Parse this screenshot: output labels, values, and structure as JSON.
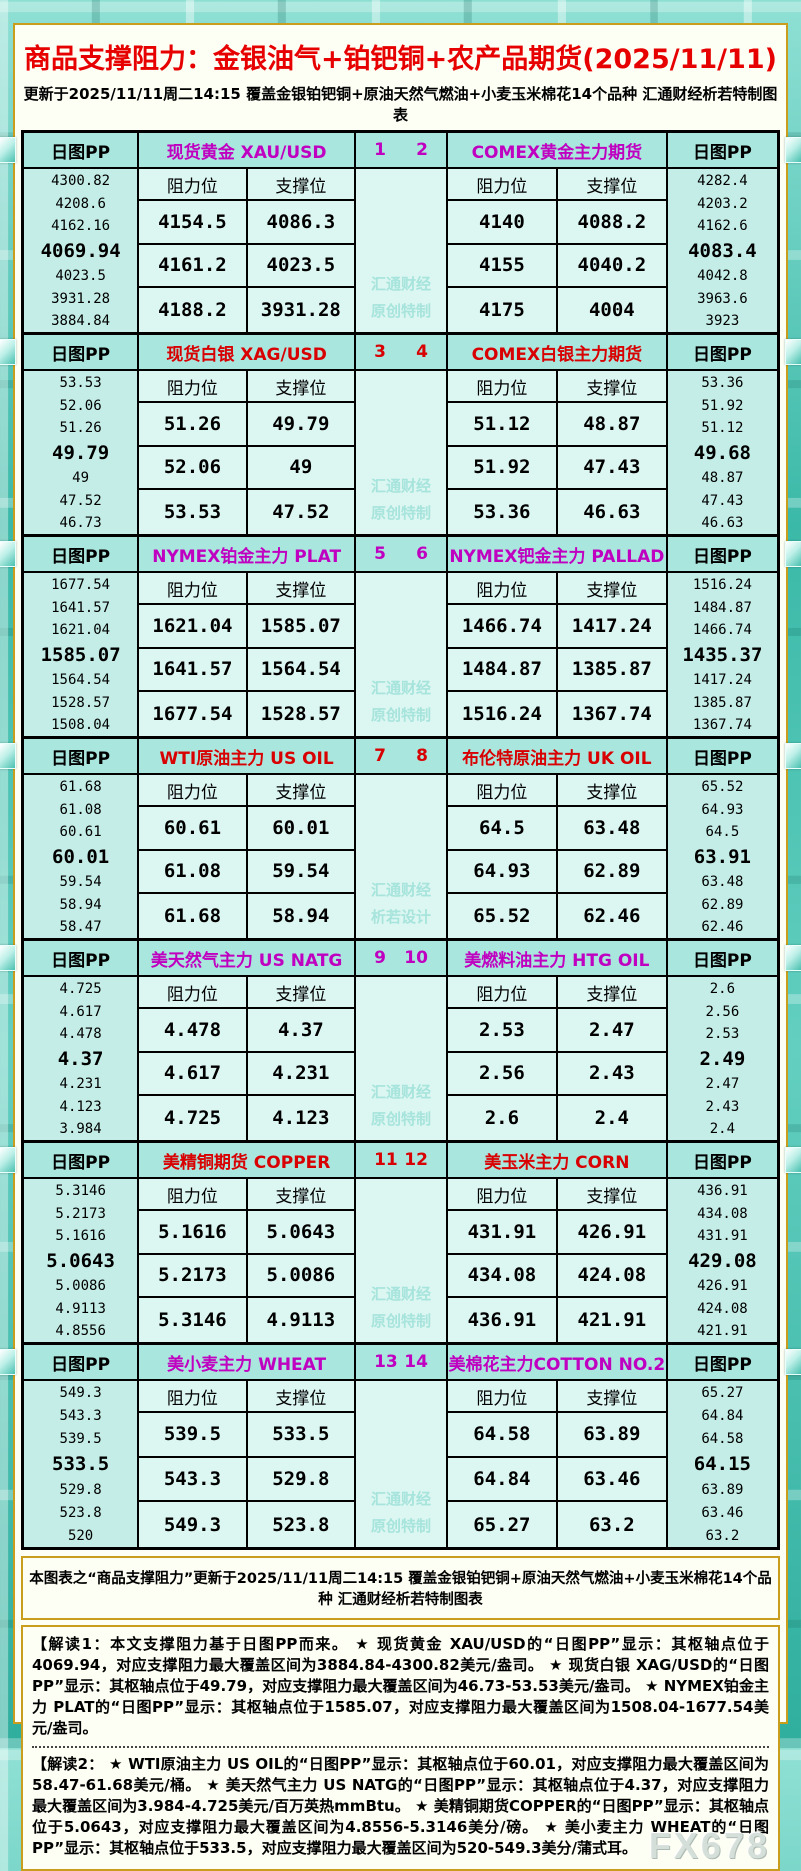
{
  "title": "商品支撑阻力：金银油气+铂钯铜+农产品期货(2025/11/11)",
  "subtitle": "更新于2025/11/11周二14:15 覆盖金银铂钯铜+原油天然气燃油+小麦玉米棉花14个品种 汇通财经析若特制图表",
  "labels": {
    "daily_pp": "日图PP",
    "resistance": "阻力位",
    "support": "支撑位"
  },
  "colors": {
    "magenta_accent": "#c000c0",
    "red_accent": "#d80000",
    "title_red": "#e60000",
    "gold_border": "#c99e1c",
    "header_teal": "#a9e6de",
    "pp_column_teal": "#c3ede6",
    "cell_light": "#dcf6f2",
    "watermark_teal": "#a6e4dc"
  },
  "chart_data": {
    "type": "table",
    "panels": [
      {
        "accent": "#c000c0",
        "num_left": "1",
        "num_right": "2",
        "watermark": [
          "汇通财经",
          "原创特制"
        ],
        "left": {
          "title": "现货黄金 XAU/USD",
          "pp": [
            "4300.82",
            "4208.6",
            "4162.16",
            "4069.94",
            "4023.5",
            "3931.28",
            "3884.84"
          ],
          "rows": [
            [
              "4154.5",
              "4086.3"
            ],
            [
              "4161.2",
              "4023.5"
            ],
            [
              "4188.2",
              "3931.28"
            ]
          ]
        },
        "right": {
          "title": "COMEX黄金主力期货",
          "pp": [
            "4282.4",
            "4203.2",
            "4162.6",
            "4083.4",
            "4042.8",
            "3963.6",
            "3923"
          ],
          "rows": [
            [
              "4140",
              "4088.2"
            ],
            [
              "4155",
              "4040.2"
            ],
            [
              "4175",
              "4004"
            ]
          ]
        }
      },
      {
        "accent": "#d80000",
        "num_left": "3",
        "num_right": "4",
        "watermark": [
          "汇通财经",
          "原创特制"
        ],
        "left": {
          "title": "现货白银 XAG/USD",
          "pp": [
            "53.53",
            "52.06",
            "51.26",
            "49.79",
            "49",
            "47.52",
            "46.73"
          ],
          "rows": [
            [
              "51.26",
              "49.79"
            ],
            [
              "52.06",
              "49"
            ],
            [
              "53.53",
              "47.52"
            ]
          ]
        },
        "right": {
          "title": "COMEX白银主力期货",
          "pp": [
            "53.36",
            "51.92",
            "51.12",
            "49.68",
            "48.87",
            "47.43",
            "46.63"
          ],
          "rows": [
            [
              "51.12",
              "48.87"
            ],
            [
              "51.92",
              "47.43"
            ],
            [
              "53.36",
              "46.63"
            ]
          ]
        }
      },
      {
        "accent": "#c000c0",
        "num_left": "5",
        "num_right": "6",
        "watermark": [
          "汇通财经",
          "原创特制"
        ],
        "left": {
          "title": "NYMEX铂金主力 PLAT",
          "pp": [
            "1677.54",
            "1641.57",
            "1621.04",
            "1585.07",
            "1564.54",
            "1528.57",
            "1508.04"
          ],
          "rows": [
            [
              "1621.04",
              "1585.07"
            ],
            [
              "1641.57",
              "1564.54"
            ],
            [
              "1677.54",
              "1528.57"
            ]
          ]
        },
        "right": {
          "title": "NYMEX钯金主力 PALLAD",
          "pp": [
            "1516.24",
            "1484.87",
            "1466.74",
            "1435.37",
            "1417.24",
            "1385.87",
            "1367.74"
          ],
          "rows": [
            [
              "1466.74",
              "1417.24"
            ],
            [
              "1484.87",
              "1385.87"
            ],
            [
              "1516.24",
              "1367.74"
            ]
          ]
        }
      },
      {
        "accent": "#d80000",
        "num_left": "7",
        "num_right": "8",
        "watermark": [
          "汇通财经",
          "析若设计"
        ],
        "left": {
          "title": "WTI原油主力 US OIL",
          "pp": [
            "61.68",
            "61.08",
            "60.61",
            "60.01",
            "59.54",
            "58.94",
            "58.47"
          ],
          "rows": [
            [
              "60.61",
              "60.01"
            ],
            [
              "61.08",
              "59.54"
            ],
            [
              "61.68",
              "58.94"
            ]
          ]
        },
        "right": {
          "title": "布伦特原油主力 UK OIL",
          "pp": [
            "65.52",
            "64.93",
            "64.5",
            "63.91",
            "63.48",
            "62.89",
            "62.46"
          ],
          "rows": [
            [
              "64.5",
              "63.48"
            ],
            [
              "64.93",
              "62.89"
            ],
            [
              "65.52",
              "62.46"
            ]
          ]
        }
      },
      {
        "accent": "#c000c0",
        "num_left": "9",
        "num_right": "10",
        "watermark": [
          "汇通财经",
          "原创特制"
        ],
        "left": {
          "title": "美天然气主力 US NATG",
          "pp": [
            "4.725",
            "4.617",
            "4.478",
            "4.37",
            "4.231",
            "4.123",
            "3.984"
          ],
          "rows": [
            [
              "4.478",
              "4.37"
            ],
            [
              "4.617",
              "4.231"
            ],
            [
              "4.725",
              "4.123"
            ]
          ]
        },
        "right": {
          "title": "美燃料油主力 HTG OIL",
          "pp": [
            "2.6",
            "2.56",
            "2.53",
            "2.49",
            "2.47",
            "2.43",
            "2.4"
          ],
          "rows": [
            [
              "2.53",
              "2.47"
            ],
            [
              "2.56",
              "2.43"
            ],
            [
              "2.6",
              "2.4"
            ]
          ]
        }
      },
      {
        "accent": "#d80000",
        "num_left": "11",
        "num_right": "12",
        "watermark": [
          "汇通财经",
          "原创特制"
        ],
        "left": {
          "title": "美精铜期货 COPPER",
          "pp": [
            "5.3146",
            "5.2173",
            "5.1616",
            "5.0643",
            "5.0086",
            "4.9113",
            "4.8556"
          ],
          "rows": [
            [
              "5.1616",
              "5.0643"
            ],
            [
              "5.2173",
              "5.0086"
            ],
            [
              "5.3146",
              "4.9113"
            ]
          ]
        },
        "right": {
          "title": "美玉米主力 CORN",
          "pp": [
            "436.91",
            "434.08",
            "431.91",
            "429.08",
            "426.91",
            "424.08",
            "421.91"
          ],
          "rows": [
            [
              "431.91",
              "426.91"
            ],
            [
              "434.08",
              "424.08"
            ],
            [
              "436.91",
              "421.91"
            ]
          ]
        }
      },
      {
        "accent": "#c000c0",
        "num_left": "13",
        "num_right": "14",
        "watermark": [
          "汇通财经",
          "原创特制"
        ],
        "left": {
          "title": "美小麦主力 WHEAT",
          "pp": [
            "549.3",
            "543.3",
            "539.5",
            "533.5",
            "529.8",
            "523.8",
            "520"
          ],
          "rows": [
            [
              "539.5",
              "533.5"
            ],
            [
              "543.3",
              "529.8"
            ],
            [
              "549.3",
              "523.8"
            ]
          ]
        },
        "right": {
          "title": "美棉花主力COTTON NO.2",
          "pp": [
            "65.27",
            "64.84",
            "64.58",
            "64.15",
            "63.89",
            "63.46",
            "63.2"
          ],
          "rows": [
            [
              "64.58",
              "63.89"
            ],
            [
              "64.84",
              "63.46"
            ],
            [
              "65.27",
              "63.2"
            ]
          ]
        }
      }
    ]
  },
  "footer": "本图表之“商品支撑阻力”更新于2025/11/11周二14:15 覆盖金银铂钯铜+原油天然气燃油+小麦玉米棉花14个品种 汇通财经析若特制图表",
  "notes": [
    "【解读1：本文支撑阻力基于日图PP而来。 ★ 现货黄金 XAU/USD的“日图PP”显示：其枢轴点位于4069.94，对应支撑阻力最大覆盖区间为3884.84-4300.82美元/盎司。 ★ 现货白银 XAG/USD的“日图PP”显示：其枢轴点位于49.79，对应支撑阻力最大覆盖区间为46.73-53.53美元/盎司。 ★ NYMEX铂金主力 PLAT的“日图PP”显示：其枢轴点位于1585.07，对应支撑阻力最大覆盖区间为1508.04-1677.54美元/盎司。",
    "【解读2： ★ WTI原油主力 US OIL的“日图PP”显示：其枢轴点位于60.01，对应支撑阻力最大覆盖区间为58.47-61.68美元/桶。 ★ 美天然气主力 US NATG的“日图PP”显示：其枢轴点位于4.37，对应支撑阻力最大覆盖区间为3.984-4.725美元/百万英热mmBtu。 ★ 美精铜期货COPPER的“日图PP”显示：其枢轴点位于5.0643，对应支撑阻力最大覆盖区间为4.8556-5.3146美分/磅。 ★ 美小麦主力 WHEAT的“日图PP”显示：其枢轴点位于533.5，对应支撑阻力最大覆盖区间为520-549.3美分/蒲式耳。"
  ],
  "site_watermark": "FX678"
}
